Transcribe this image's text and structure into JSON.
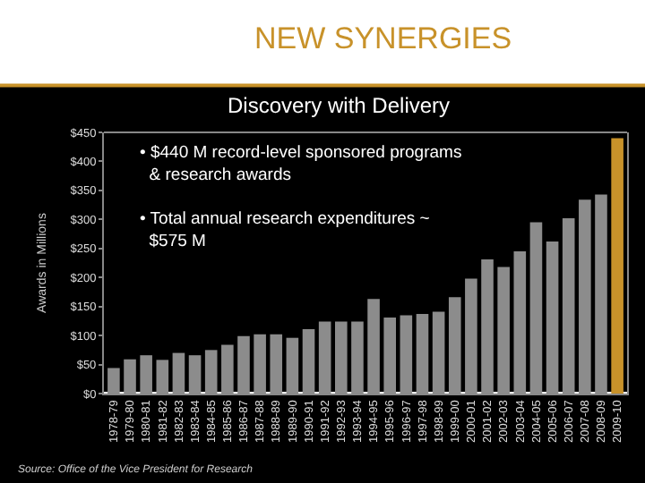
{
  "chart_data": {
    "type": "bar",
    "title": "NEW SYNERGIES",
    "subtitle": "Discovery with Delivery",
    "ylabel": "Awards in Millions",
    "categories": [
      "1978-79",
      "1979-80",
      "1980-81",
      "1981-82",
      "1982-83",
      "1983-84",
      "1984-85",
      "1985-86",
      "1986-87",
      "1987-88",
      "1988-89",
      "1989-90",
      "1990-91",
      "1991-92",
      "1992-93",
      "1993-94",
      "1994-95",
      "1995-96",
      "1996-97",
      "1997-98",
      "1998-99",
      "1999-00",
      "2000-01",
      "2001-02",
      "2002-03",
      "2003-04",
      "2004-05",
      "2005-06",
      "2006-07",
      "2007-08",
      "2008-09",
      "2009-10"
    ],
    "values": [
      44,
      59,
      66,
      58,
      70,
      66,
      75,
      84,
      99,
      102,
      102,
      96,
      111,
      124,
      124,
      124,
      163,
      131,
      135,
      137,
      141,
      166,
      198,
      231,
      218,
      245,
      295,
      262,
      302,
      334,
      343,
      440
    ],
    "colors": [
      "#8c8c8c",
      "#8c8c8c",
      "#8c8c8c",
      "#8c8c8c",
      "#8c8c8c",
      "#8c8c8c",
      "#8c8c8c",
      "#8c8c8c",
      "#8c8c8c",
      "#8c8c8c",
      "#8c8c8c",
      "#8c8c8c",
      "#8c8c8c",
      "#8c8c8c",
      "#8c8c8c",
      "#8c8c8c",
      "#8c8c8c",
      "#8c8c8c",
      "#8c8c8c",
      "#8c8c8c",
      "#8c8c8c",
      "#8c8c8c",
      "#8c8c8c",
      "#8c8c8c",
      "#8c8c8c",
      "#8c8c8c",
      "#8c8c8c",
      "#8c8c8c",
      "#8c8c8c",
      "#8c8c8c",
      "#8c8c8c",
      "#c8922a"
    ],
    "ylim": [
      0,
      450
    ],
    "yticks": [
      {
        "value": 0,
        "label": "$0"
      },
      {
        "value": 50,
        "label": "$50"
      },
      {
        "value": 100,
        "label": "$100"
      },
      {
        "value": 150,
        "label": "$150"
      },
      {
        "value": 200,
        "label": "$200"
      },
      {
        "value": 250,
        "label": "$250"
      },
      {
        "value": 300,
        "label": "$300"
      },
      {
        "value": 350,
        "label": "$350"
      },
      {
        "value": 400,
        "label": "$400"
      },
      {
        "value": 450,
        "label": "$450"
      }
    ],
    "grid": false,
    "annotations": [
      "• $440 M record-level sponsored programs & research awards",
      "• Total annual research expenditures ~ $575 M",
      "Source: Office of the Vice President for Research"
    ]
  }
}
